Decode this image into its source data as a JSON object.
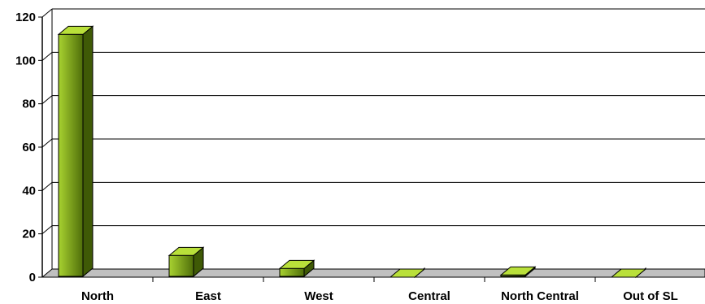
{
  "chart_data": {
    "type": "bar",
    "categories": [
      "North",
      "East",
      "West",
      "Central",
      "North Central",
      "Out of SL"
    ],
    "values": [
      112,
      10,
      4,
      0,
      1,
      0
    ],
    "title": "",
    "xlabel": "",
    "ylabel": "",
    "ylim": [
      0,
      120
    ],
    "yticks": [
      "0",
      "20",
      "40",
      "60",
      "80",
      "100",
      "120"
    ],
    "grid": true,
    "legend": "none",
    "style": "3d-column",
    "colors": {
      "bar_front_light": "#a8d230",
      "bar_front_dark": "#4f6e0a",
      "bar_side": "#3f5a06",
      "bar_top": "#b9e03a",
      "floor": "#c0c0c0",
      "grid": "#000000"
    }
  }
}
